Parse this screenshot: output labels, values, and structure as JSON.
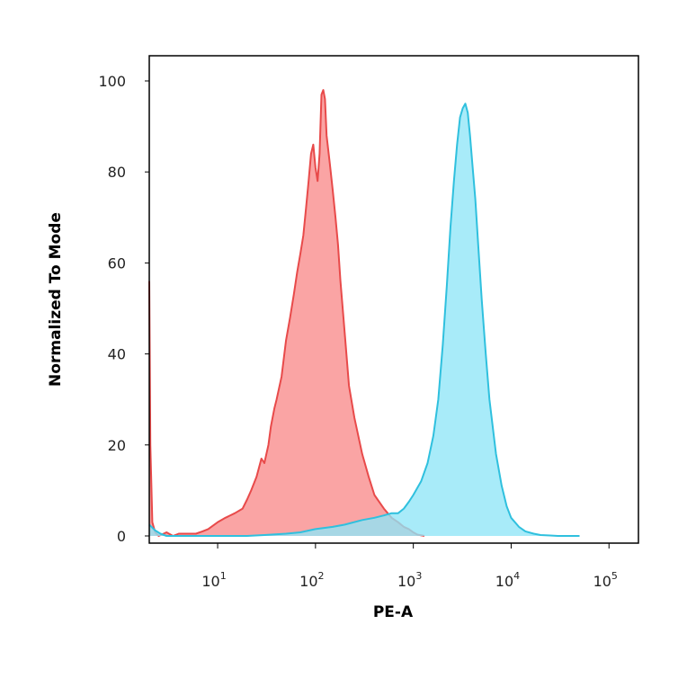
{
  "chart_data": {
    "type": "area",
    "xlabel": "PE-A",
    "ylabel": "Normalized To Mode",
    "x_scale": "log",
    "xlim": [
      2,
      200000
    ],
    "ylim": [
      0,
      100
    ],
    "x_ticks": [
      {
        "value": 10,
        "base": "10",
        "exp": "1"
      },
      {
        "value": 100,
        "base": "10",
        "exp": "2"
      },
      {
        "value": 1000,
        "base": "10",
        "exp": "3"
      },
      {
        "value": 10000,
        "base": "10",
        "exp": "4"
      },
      {
        "value": 100000,
        "base": "10",
        "exp": "5"
      }
    ],
    "y_ticks": [
      {
        "value": 0,
        "label": "0"
      },
      {
        "value": 20,
        "label": "20"
      },
      {
        "value": 40,
        "label": "40"
      },
      {
        "value": 60,
        "label": "60"
      },
      {
        "value": 80,
        "label": "80"
      },
      {
        "value": 100,
        "label": "100"
      }
    ],
    "grid": false,
    "series": [
      {
        "color": "#e84a4a",
        "fill": "#f98b8b",
        "x": [
          2.0,
          2.05,
          2.15,
          2.3,
          2.5,
          3,
          3.5,
          4,
          5,
          6,
          7,
          8,
          10,
          12,
          15,
          18,
          20,
          22,
          25,
          28,
          30,
          33,
          35,
          38,
          40,
          45,
          50,
          55,
          60,
          65,
          70,
          75,
          80,
          85,
          90,
          95,
          100,
          105,
          110,
          115,
          120,
          125,
          130,
          140,
          150,
          160,
          170,
          180,
          200,
          220,
          250,
          300,
          350,
          400,
          500,
          600,
          700,
          800,
          900,
          1000,
          1100,
          1300
        ],
        "y": [
          56,
          20,
          3,
          0.8,
          0,
          0.8,
          0,
          0.5,
          0.5,
          0.5,
          1,
          1.5,
          3,
          4,
          5,
          6,
          8,
          10,
          13,
          17,
          16,
          20,
          24,
          28,
          30,
          35,
          43,
          48,
          53,
          58,
          62,
          66,
          72,
          78,
          84,
          86,
          81,
          78,
          84,
          97,
          98,
          96,
          88,
          82,
          76,
          70,
          64,
          56,
          44,
          33,
          26,
          18,
          13,
          9,
          6,
          4,
          3,
          2,
          1.5,
          0.8,
          0.3,
          0
        ]
      },
      {
        "color": "#2fc0de",
        "fill": "#8fe6f7",
        "x": [
          2.0,
          2.3,
          2.6,
          3,
          4,
          5,
          10,
          20,
          30,
          50,
          70,
          100,
          150,
          200,
          300,
          400,
          500,
          600,
          700,
          800,
          900,
          1000,
          1200,
          1400,
          1600,
          1800,
          2000,
          2200,
          2400,
          2600,
          2800,
          3000,
          3200,
          3400,
          3600,
          3800,
          4000,
          4300,
          4600,
          5000,
          5500,
          6000,
          7000,
          8000,
          9000,
          10000,
          12000,
          14000,
          17000,
          20000,
          25000,
          30000,
          40000,
          50000
        ],
        "y": [
          2.5,
          1.2,
          0.5,
          0,
          0,
          0,
          0,
          0,
          0.2,
          0.5,
          0.8,
          1.5,
          2,
          2.5,
          3.5,
          4,
          4.5,
          5,
          5,
          6,
          7.5,
          9,
          12,
          16,
          22,
          30,
          42,
          55,
          68,
          78,
          86,
          92,
          94,
          95,
          93,
          88,
          82,
          74,
          64,
          52,
          40,
          30,
          18,
          11,
          6.5,
          4,
          2,
          1,
          0.5,
          0.2,
          0.1,
          0,
          0,
          0
        ]
      }
    ]
  }
}
